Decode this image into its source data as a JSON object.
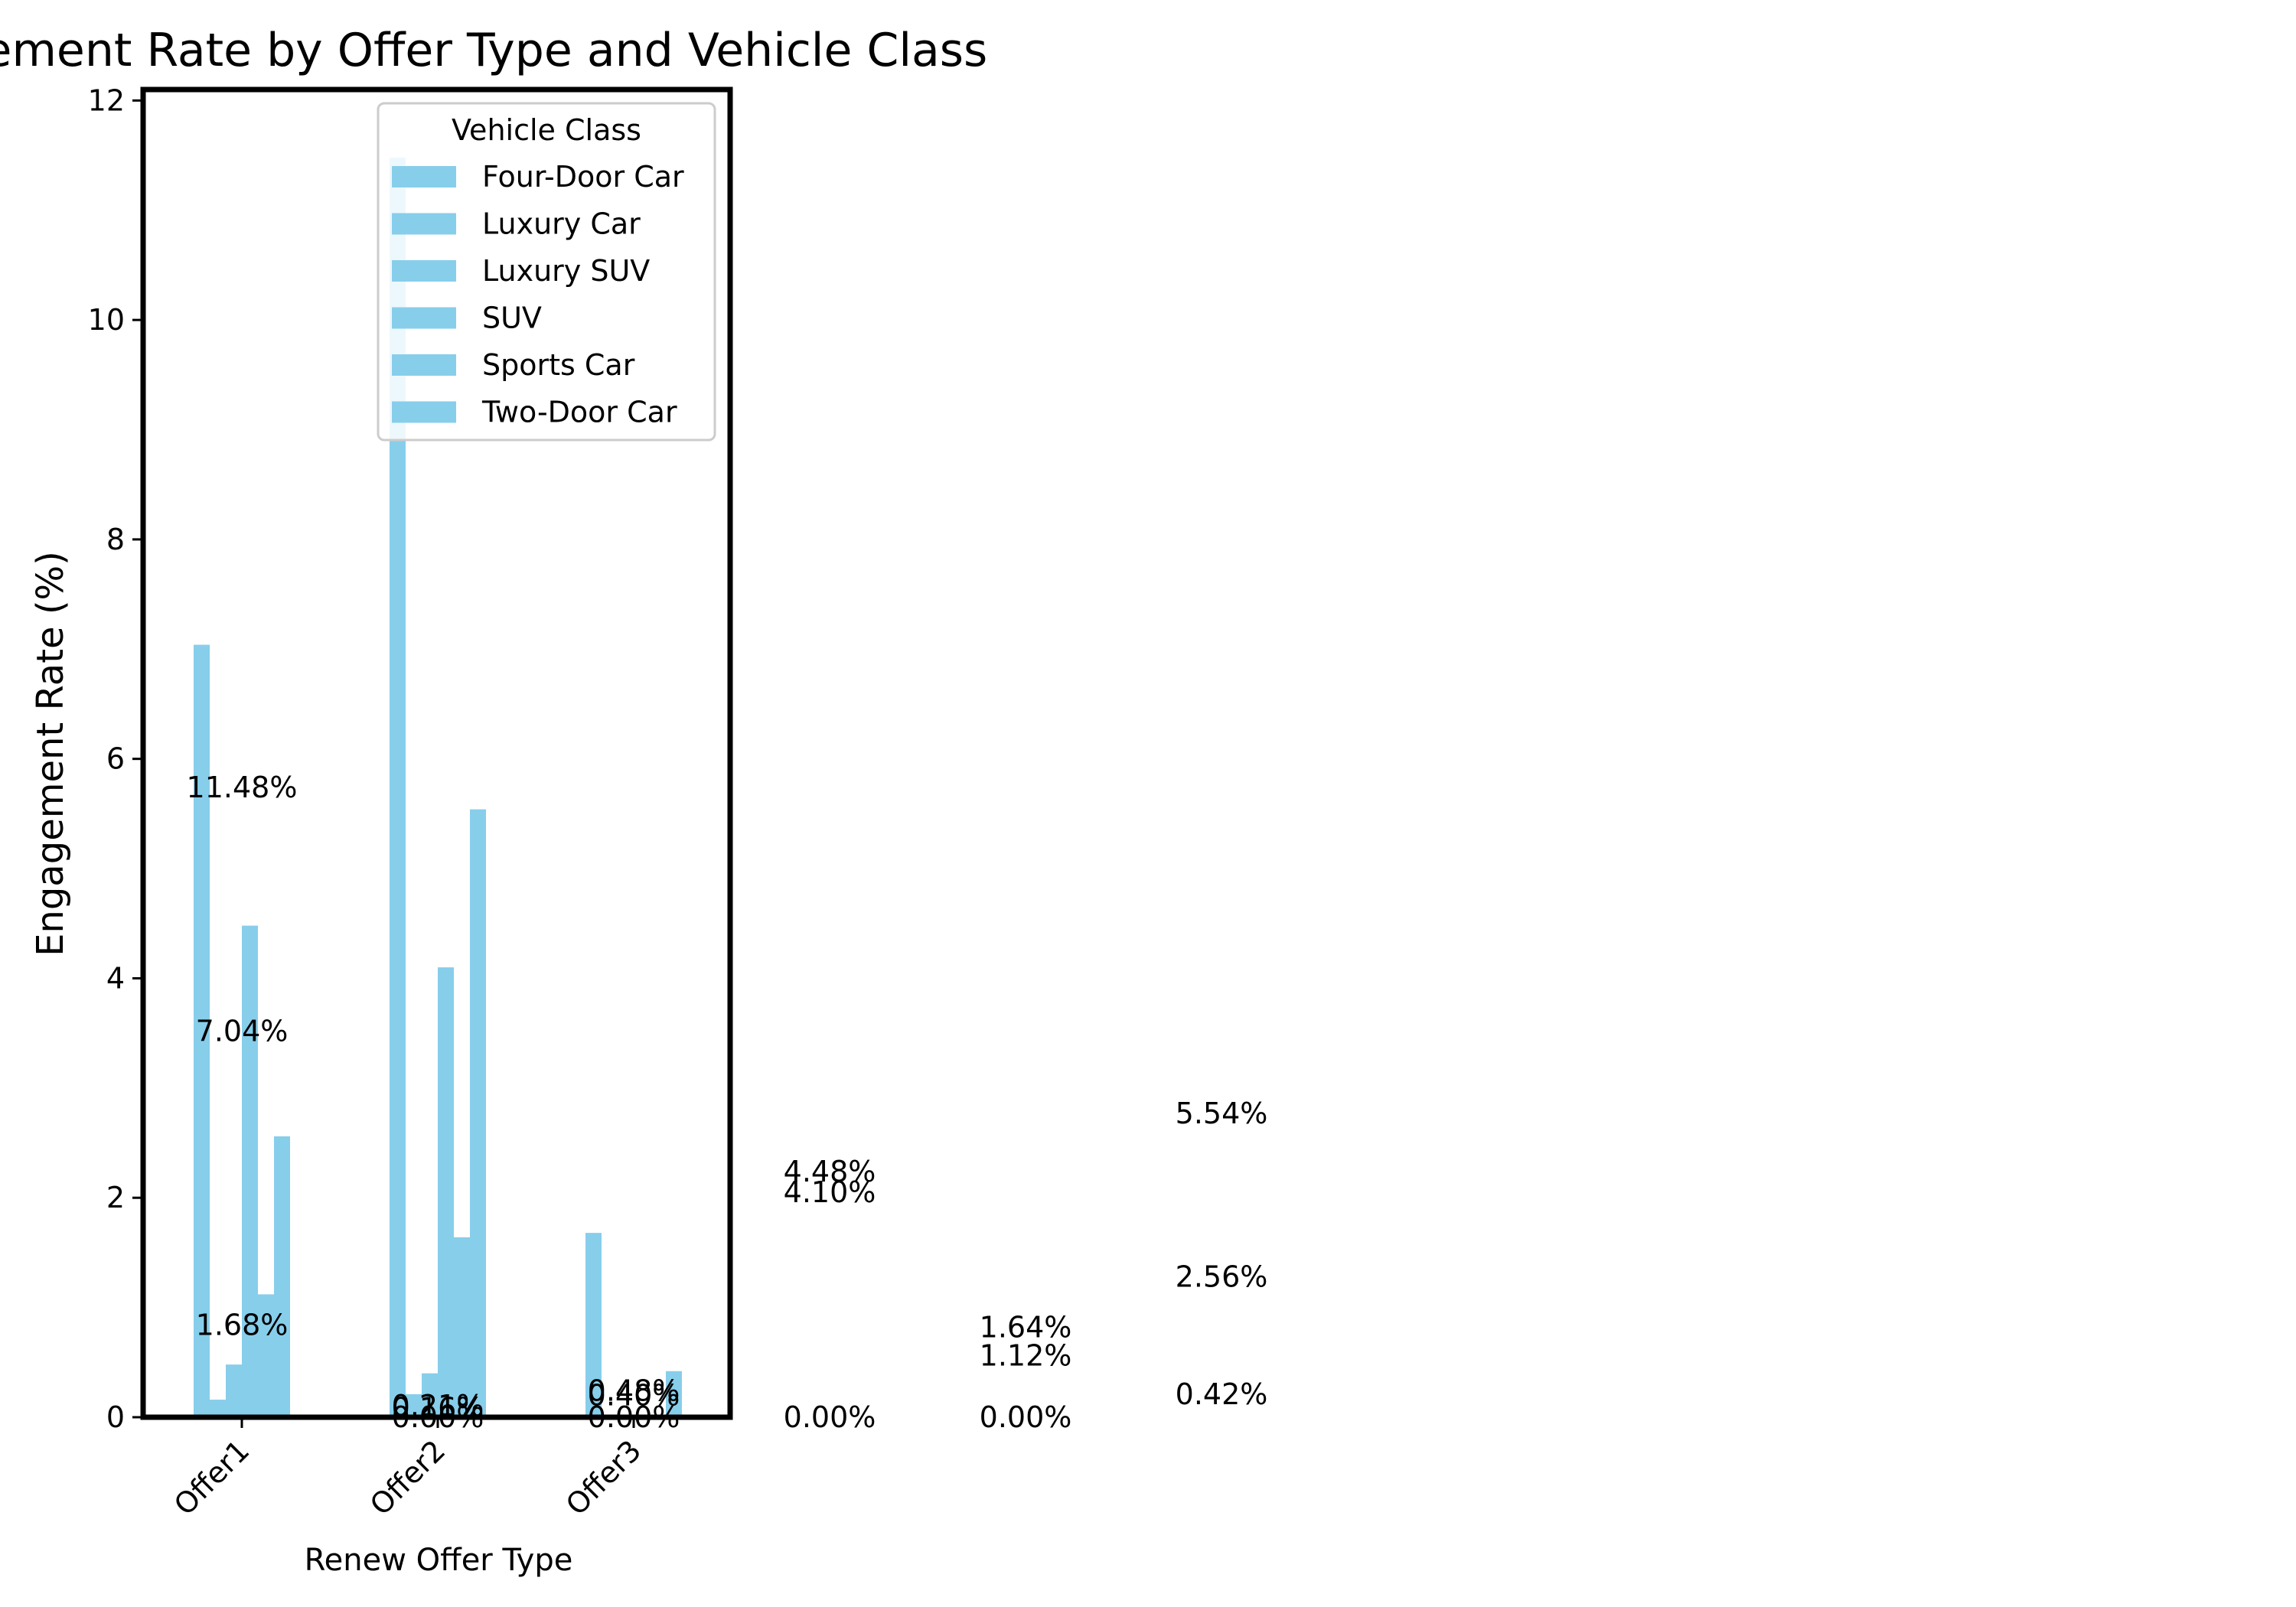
{
  "chart_data": {
    "type": "bar",
    "title": "Engagement Rate by Offer Type and Vehicle Class",
    "xlabel": "Renew Offer Type",
    "ylabel": "Engagement Rate (%)",
    "ylim": [
      0,
      12.1
    ],
    "yticks": [
      0,
      2,
      4,
      6,
      8,
      10,
      12
    ],
    "grid": false,
    "categories": [
      "Offer1",
      "Offer2",
      "Offer3"
    ],
    "bar_color": "#87CEEB",
    "legend": {
      "title": "Vehicle Class",
      "placement": "top-center"
    },
    "series": [
      {
        "name": "Four-Door Car",
        "values": [
          7.04,
          11.48,
          1.68
        ]
      },
      {
        "name": "Luxury Car",
        "values": [
          0.16,
          0.21,
          0.0
        ]
      },
      {
        "name": "Luxury SUV",
        "values": [
          0.48,
          0.4,
          0.0
        ]
      },
      {
        "name": "SUV",
        "values": [
          4.48,
          4.1,
          0.0
        ]
      },
      {
        "name": "Sports Car",
        "values": [
          1.12,
          1.64,
          0.0
        ]
      },
      {
        "name": "Two-Door Car",
        "values": [
          2.56,
          5.54,
          0.42
        ]
      }
    ],
    "bar_labels": [
      {
        "text": "11.48%",
        "x_cat": 0,
        "y": 5.74
      },
      {
        "text": "7.04%",
        "x_cat": 0,
        "y": 3.52
      },
      {
        "text": "1.68%",
        "x_cat": 0,
        "y": 0.84
      },
      {
        "text": "0.21%",
        "x_cat": 1,
        "y": 0.105
      },
      {
        "text": "0.16%",
        "x_cat": 1,
        "y": 0.08
      },
      {
        "text": "0.00%",
        "x_cat": 1,
        "y": 0.0
      },
      {
        "text": "0.48%",
        "x_cat": 2,
        "y": 0.24
      },
      {
        "text": "0.40%",
        "x_cat": 2,
        "y": 0.2
      },
      {
        "text": "0.00%",
        "x_cat": 2,
        "y": 0.0
      },
      {
        "text": "4.48%",
        "x_cat": 3,
        "y": 2.24
      },
      {
        "text": "4.10%",
        "x_cat": 3,
        "y": 2.05
      },
      {
        "text": "0.00%",
        "x_cat": 3,
        "y": 0.0
      },
      {
        "text": "1.64%",
        "x_cat": 4,
        "y": 0.82
      },
      {
        "text": "1.12%",
        "x_cat": 4,
        "y": 0.56
      },
      {
        "text": "0.00%",
        "x_cat": 4,
        "y": 0.0
      },
      {
        "text": "5.54%",
        "x_cat": 5,
        "y": 2.77
      },
      {
        "text": "2.56%",
        "x_cat": 5,
        "y": 1.28
      },
      {
        "text": "0.42%",
        "x_cat": 5,
        "y": 0.21
      }
    ]
  }
}
